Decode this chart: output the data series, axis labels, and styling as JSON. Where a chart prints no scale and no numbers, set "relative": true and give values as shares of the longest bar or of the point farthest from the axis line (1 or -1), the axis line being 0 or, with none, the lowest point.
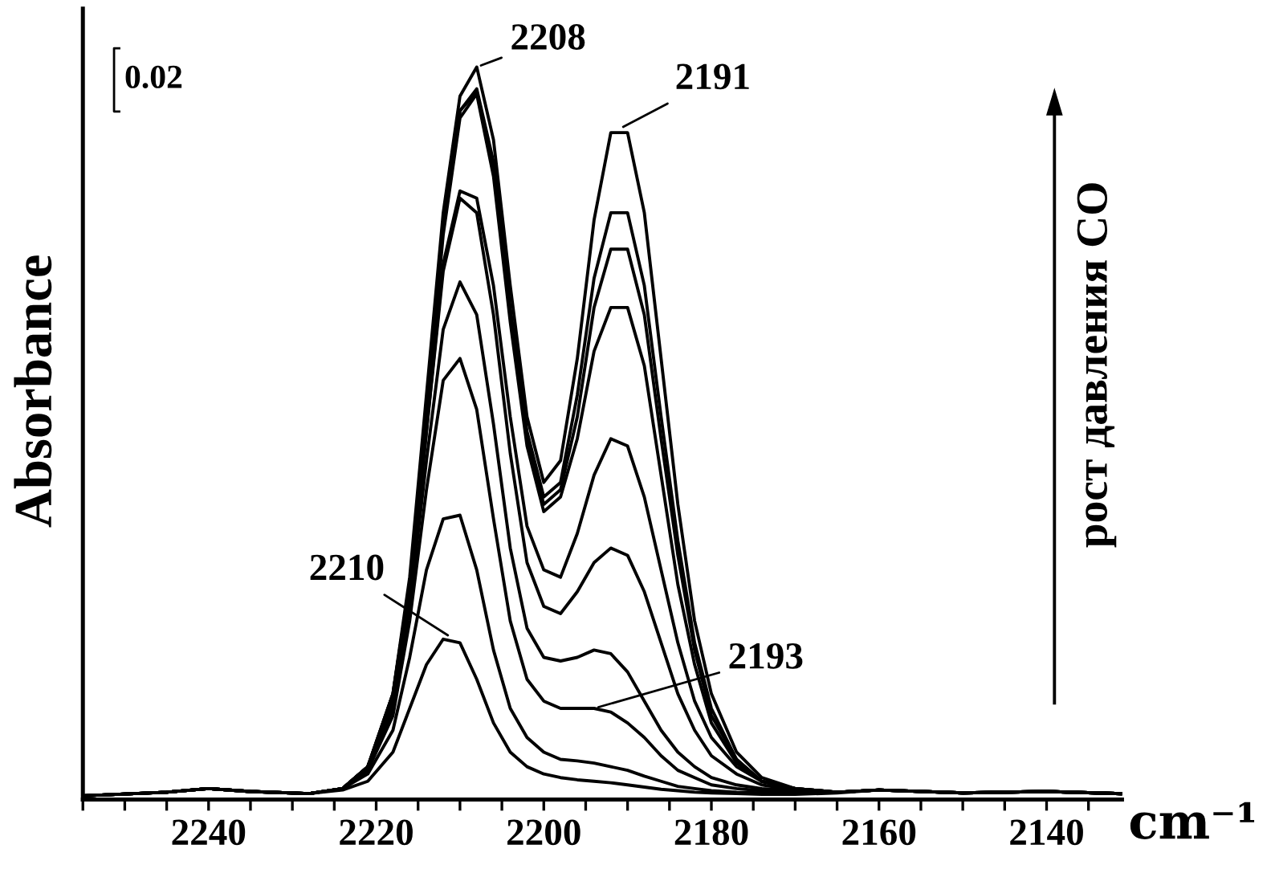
{
  "chart_data": {
    "type": "line",
    "relative": true,
    "xlabel": "cm⁻¹",
    "ylabel": "Absorbance",
    "legend": false,
    "grid": false,
    "marker": "none",
    "line_style": "solid",
    "xlim": [
      2255,
      2131
    ],
    "xticks": [
      {
        "value": 2255,
        "label": null
      },
      {
        "value": 2250,
        "label": null
      },
      {
        "value": 2245,
        "label": null
      },
      2240,
      {
        "value": 2235,
        "label": null
      },
      {
        "value": 2230,
        "label": null
      },
      {
        "value": 2225,
        "label": null
      },
      2220,
      {
        "value": 2215,
        "label": null
      },
      {
        "value": 2210,
        "label": null
      },
      {
        "value": 2205,
        "label": null
      },
      2200,
      {
        "value": 2195,
        "label": null
      },
      {
        "value": 2190,
        "label": null
      },
      {
        "value": 2185,
        "label": null
      },
      2180,
      {
        "value": 2175,
        "label": null
      },
      {
        "value": 2170,
        "label": null
      },
      {
        "value": 2165,
        "label": null
      },
      2160,
      {
        "value": 2155,
        "label": null
      },
      {
        "value": 2150,
        "label": null
      },
      {
        "value": 2145,
        "label": null
      },
      2140,
      {
        "value": 2135,
        "label": null
      }
    ],
    "x": [
      2255,
      2245,
      2240,
      2235,
      2228,
      2224,
      2221,
      2218,
      2216,
      2214,
      2212,
      2210,
      2208,
      2206,
      2204,
      2202,
      2200,
      2198,
      2196,
      2194,
      2192,
      2190,
      2188,
      2186,
      2184,
      2182,
      2180,
      2177,
      2174,
      2170,
      2165,
      2160,
      2150,
      2140,
      2131
    ],
    "series": [
      {
        "color": "#000000",
        "values": [
          0,
          0.005,
          0.01,
          0.006,
          0.003,
          0.01,
          0.04,
          0.14,
          0.3,
          0.55,
          0.8,
          0.96,
          1.0,
          0.9,
          0.7,
          0.52,
          0.43,
          0.46,
          0.6,
          0.79,
          0.91,
          0.91,
          0.8,
          0.6,
          0.4,
          0.24,
          0.14,
          0.06,
          0.025,
          0.01,
          0.005,
          0.008,
          0.004,
          0.006,
          0.003
        ]
      },
      {
        "color": "#000000",
        "values": [
          0,
          0.005,
          0.01,
          0.006,
          0.003,
          0.01,
          0.04,
          0.14,
          0.29,
          0.53,
          0.78,
          0.94,
          0.97,
          0.87,
          0.67,
          0.5,
          0.41,
          0.43,
          0.55,
          0.71,
          0.8,
          0.8,
          0.7,
          0.52,
          0.35,
          0.21,
          0.12,
          0.05,
          0.02,
          0.01,
          0.005,
          0.008,
          0.004,
          0.006,
          0.003
        ]
      },
      {
        "color": "#000000",
        "values": [
          0,
          0.005,
          0.01,
          0.006,
          0.003,
          0.01,
          0.04,
          0.14,
          0.29,
          0.53,
          0.78,
          0.94,
          0.966,
          0.86,
          0.66,
          0.49,
          0.4,
          0.42,
          0.52,
          0.67,
          0.75,
          0.75,
          0.66,
          0.49,
          0.33,
          0.2,
          0.11,
          0.05,
          0.02,
          0.01,
          0.005,
          0.008,
          0.004,
          0.006,
          0.003
        ]
      },
      {
        "color": "#000000",
        "values": [
          0,
          0.005,
          0.01,
          0.006,
          0.003,
          0.01,
          0.04,
          0.13,
          0.28,
          0.52,
          0.77,
          0.93,
          0.963,
          0.85,
          0.65,
          0.48,
          0.39,
          0.41,
          0.49,
          0.61,
          0.67,
          0.67,
          0.59,
          0.44,
          0.29,
          0.18,
          0.1,
          0.045,
          0.02,
          0.01,
          0.005,
          0.008,
          0.004,
          0.006,
          0.003
        ]
      },
      {
        "color": "#000000",
        "values": [
          0,
          0.005,
          0.01,
          0.006,
          0.003,
          0.01,
          0.04,
          0.13,
          0.27,
          0.5,
          0.73,
          0.83,
          0.82,
          0.7,
          0.52,
          0.37,
          0.31,
          0.3,
          0.36,
          0.44,
          0.49,
          0.48,
          0.41,
          0.31,
          0.21,
          0.13,
          0.08,
          0.04,
          0.02,
          0.01,
          0.005,
          0.008,
          0.004,
          0.006,
          0.003
        ]
      },
      {
        "color": "#000000",
        "values": [
          0,
          0.005,
          0.01,
          0.006,
          0.003,
          0.01,
          0.04,
          0.13,
          0.27,
          0.5,
          0.72,
          0.82,
          0.8,
          0.66,
          0.47,
          0.32,
          0.26,
          0.25,
          0.28,
          0.32,
          0.34,
          0.33,
          0.28,
          0.21,
          0.14,
          0.09,
          0.055,
          0.03,
          0.015,
          0.008,
          0.005,
          0.008,
          0.004,
          0.006,
          0.003
        ]
      },
      {
        "color": "#000000",
        "values": [
          0,
          0.005,
          0.01,
          0.006,
          0.003,
          0.01,
          0.035,
          0.12,
          0.26,
          0.46,
          0.64,
          0.705,
          0.66,
          0.51,
          0.34,
          0.23,
          0.19,
          0.185,
          0.19,
          0.2,
          0.195,
          0.17,
          0.13,
          0.09,
          0.06,
          0.04,
          0.025,
          0.015,
          0.01,
          0.007,
          0.005,
          0.008,
          0.004,
          0.006,
          0.003
        ]
      },
      {
        "color": "#000000",
        "values": [
          0,
          0.005,
          0.01,
          0.006,
          0.003,
          0.01,
          0.035,
          0.11,
          0.24,
          0.42,
          0.57,
          0.6,
          0.53,
          0.38,
          0.24,
          0.16,
          0.13,
          0.12,
          0.12,
          0.12,
          0.115,
          0.1,
          0.08,
          0.055,
          0.035,
          0.025,
          0.015,
          0.01,
          0.007,
          0.006,
          0.005,
          0.008,
          0.004,
          0.006,
          0.003
        ]
      },
      {
        "color": "#000000",
        "values": [
          0,
          0.005,
          0.01,
          0.006,
          0.003,
          0.01,
          0.03,
          0.09,
          0.19,
          0.31,
          0.38,
          0.385,
          0.31,
          0.2,
          0.12,
          0.08,
          0.06,
          0.05,
          0.048,
          0.045,
          0.04,
          0.035,
          0.027,
          0.02,
          0.013,
          0.01,
          0.007,
          0.005,
          0.004,
          0.004,
          0.005,
          0.008,
          0.004,
          0.006,
          0.003
        ]
      },
      {
        "color": "#000000",
        "values": [
          0,
          0.005,
          0.01,
          0.006,
          0.003,
          0.008,
          0.02,
          0.06,
          0.12,
          0.18,
          0.215,
          0.21,
          0.16,
          0.1,
          0.06,
          0.04,
          0.03,
          0.025,
          0.022,
          0.02,
          0.018,
          0.015,
          0.012,
          0.009,
          0.007,
          0.005,
          0.004,
          0.003,
          0.002,
          0.002,
          0.004,
          0.008,
          0.004,
          0.006,
          0.003
        ]
      }
    ],
    "annotations": [
      {
        "text": "2208",
        "x": 2208,
        "y": 1.0
      },
      {
        "text": "2191",
        "x": 2191,
        "y": 0.915
      },
      {
        "text": "2210",
        "x": 2211,
        "y": 0.217
      },
      {
        "text": "2193",
        "x": 2194,
        "y": 0.12
      },
      "0.02",
      "рост давления CO"
    ]
  }
}
